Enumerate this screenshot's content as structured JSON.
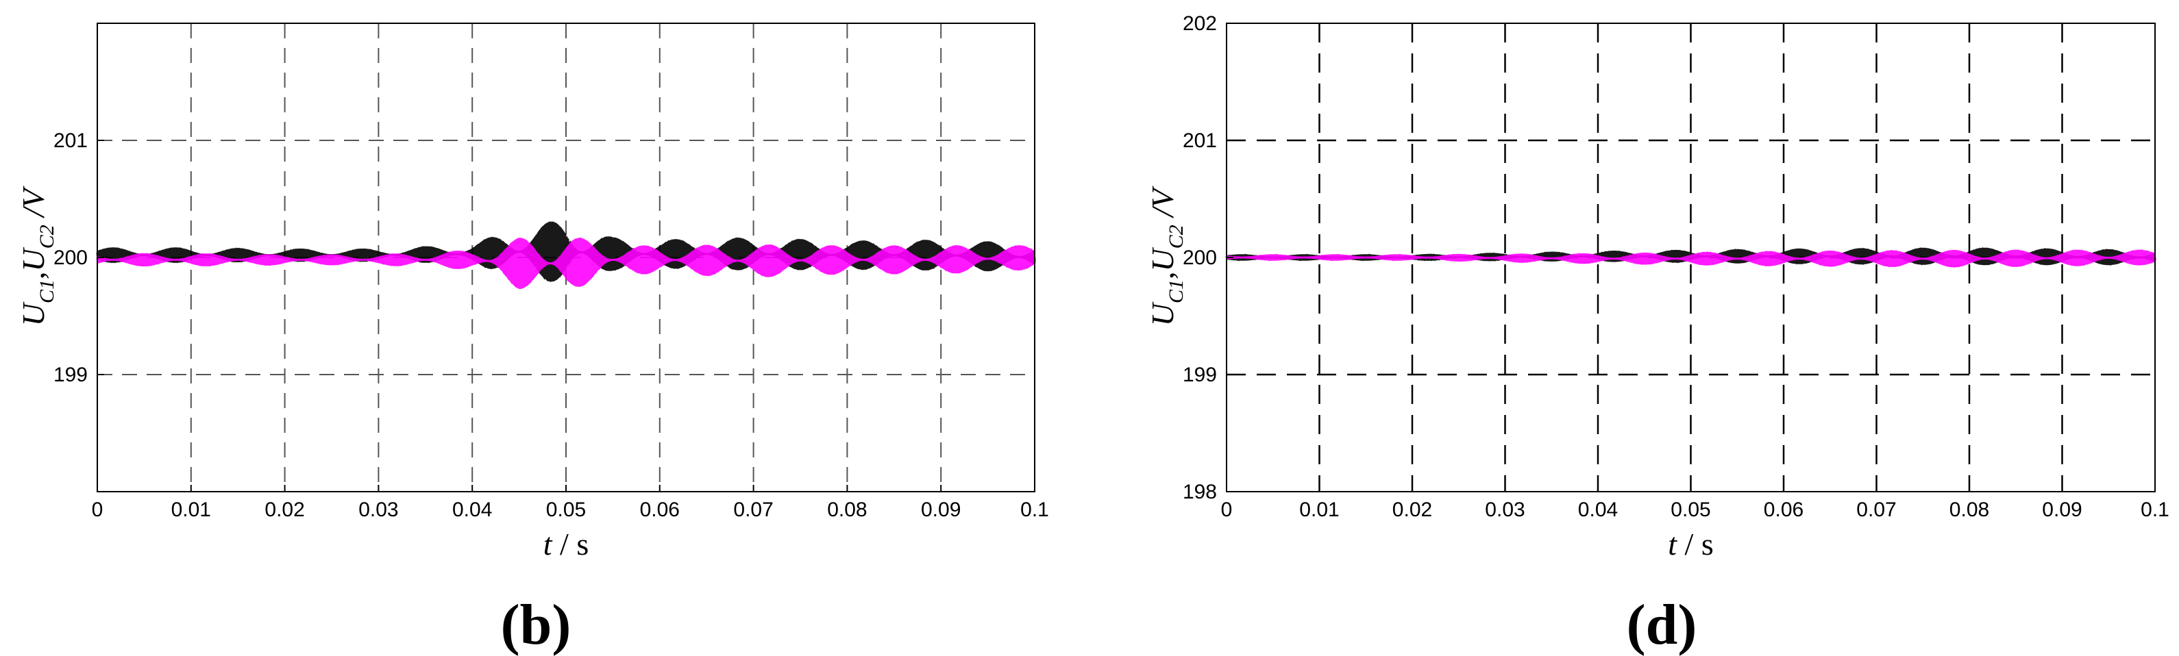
{
  "chart_data": [
    {
      "type": "line",
      "panel_label": "(b)",
      "xlabel": {
        "var": "t",
        "unit": " / s"
      },
      "ylabel": {
        "var": "U",
        "sub1": "C1",
        "sep": ",",
        "sub2": "C2",
        "unit": " /V"
      },
      "xlim": [
        0,
        0.1
      ],
      "ylim": [
        198,
        202
      ],
      "xticks": [
        0,
        0.01,
        0.02,
        0.03,
        0.04,
        0.05,
        0.06,
        0.07,
        0.08,
        0.09,
        0.1
      ],
      "xtick_labels": [
        "0",
        "0.01",
        "0.02",
        "0.03",
        "0.04",
        "0.05",
        "0.06",
        "0.07",
        "0.08",
        "0.09",
        "0.1"
      ],
      "yticks": [
        199,
        200,
        201
      ],
      "ytick_labels": [
        "199",
        "200",
        "201"
      ],
      "grid": true,
      "series": [
        {
          "color": "#000000",
          "envelope": {
            "x": [
              0,
              0.01,
              0.02,
              0.03,
              0.04,
              0.045,
              0.05,
              0.055,
              0.06,
              0.07,
              0.08,
              0.09,
              0.1
            ],
            "amplitude": [
              0.06,
              0.06,
              0.05,
              0.05,
              0.08,
              0.22,
              0.28,
              0.14,
              0.12,
              0.14,
              0.12,
              0.13,
              0.12
            ],
            "offset": [
              0.02,
              0.02,
              0.02,
              0.02,
              0.03,
              0.05,
              0.05,
              0.03,
              0.03,
              0.03,
              0.02,
              0.02,
              0.0
            ]
          }
        },
        {
          "color": "#ff00ff",
          "envelope": {
            "x": [
              0,
              0.01,
              0.02,
              0.03,
              0.04,
              0.045,
              0.05,
              0.055,
              0.06,
              0.07,
              0.08,
              0.09,
              0.1
            ],
            "amplitude": [
              0.05,
              0.05,
              0.04,
              0.04,
              0.08,
              0.22,
              0.25,
              0.12,
              0.12,
              0.14,
              0.12,
              0.12,
              0.1
            ],
            "offset": [
              -0.02,
              -0.02,
              -0.02,
              -0.02,
              -0.02,
              -0.05,
              -0.05,
              -0.02,
              -0.02,
              -0.03,
              -0.02,
              -0.02,
              0.0
            ]
          }
        }
      ]
    },
    {
      "type": "line",
      "panel_label": "(d)",
      "xlabel": {
        "var": "t",
        "unit": " / s"
      },
      "ylabel": {
        "var": "U",
        "sub1": "C1",
        "sep": ",",
        "sub2": "C2",
        "unit": " /V"
      },
      "xlim": [
        0,
        0.1
      ],
      "ylim": [
        198,
        202
      ],
      "xticks": [
        0,
        0.01,
        0.02,
        0.03,
        0.04,
        0.05,
        0.06,
        0.07,
        0.08,
        0.09,
        0.1
      ],
      "xtick_labels": [
        "0",
        "0.01",
        "0.02",
        "0.03",
        "0.04",
        "0.05",
        "0.06",
        "0.07",
        "0.08",
        "0.09",
        "0.1"
      ],
      "yticks": [
        198,
        199,
        200,
        201,
        202
      ],
      "ytick_labels": [
        "198",
        "199",
        "200",
        "201",
        "202"
      ],
      "grid": true,
      "series": [
        {
          "color": "#000000",
          "envelope": {
            "x": [
              0,
              0.02,
              0.04,
              0.06,
              0.08,
              0.1
            ],
            "amplitude": [
              0.02,
              0.02,
              0.04,
              0.06,
              0.07,
              0.06
            ],
            "offset": [
              0.0,
              0.0,
              0.01,
              0.01,
              0.01,
              0.0
            ]
          }
        },
        {
          "color": "#ff00ff",
          "envelope": {
            "x": [
              0,
              0.02,
              0.04,
              0.06,
              0.08,
              0.1
            ],
            "amplitude": [
              0.02,
              0.02,
              0.04,
              0.06,
              0.07,
              0.06
            ],
            "offset": [
              0.0,
              0.0,
              -0.01,
              -0.01,
              -0.01,
              0.0
            ]
          }
        }
      ]
    }
  ]
}
